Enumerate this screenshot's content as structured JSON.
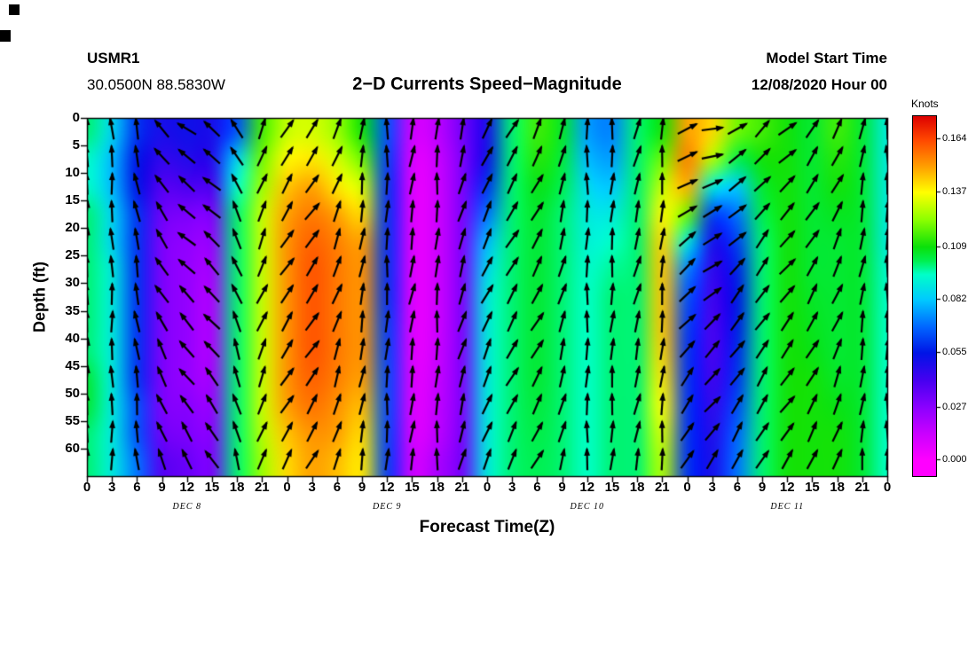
{
  "header": {
    "station_id": "USMR1",
    "coordinates": "30.0500N 88.5830W",
    "title": "2−D Currents Speed−Magnitude",
    "model_start_label": "Model Start Time",
    "model_start_value": "12/08/2020 Hour 00"
  },
  "axes": {
    "y_label": "Depth (ft)",
    "x_label": "Forecast Time(Z)",
    "y_ticks": [
      0,
      5,
      10,
      15,
      20,
      25,
      30,
      35,
      40,
      45,
      50,
      55,
      60
    ],
    "x_tick_labels": [
      "0",
      "3",
      "6",
      "9",
      "12",
      "15",
      "18",
      "21",
      "0",
      "3",
      "6",
      "9",
      "12",
      "15",
      "18",
      "21",
      "0",
      "3",
      "6",
      "9",
      "12",
      "15",
      "18",
      "21",
      "0",
      "3",
      "6",
      "9",
      "12",
      "15",
      "18",
      "21",
      "0"
    ],
    "date_labels": [
      "DEC 8",
      "DEC 9",
      "DEC 10",
      "DEC 11"
    ],
    "date_label_hours": [
      12,
      36,
      60,
      84
    ]
  },
  "colorbar": {
    "title": "Knots",
    "tick_labels": [
      "0.164",
      "0.137",
      "0.109",
      "0.082",
      "0.055",
      "0.027",
      "0.000"
    ],
    "vmin": -0.008,
    "vmax": 0.176
  },
  "chart_data": {
    "type": "heatmap",
    "title": "2−D Currents Speed−Magnitude",
    "xlabel": "Forecast Time(Z)",
    "ylabel": "Depth (ft)",
    "units": "Knots",
    "value_range": [
      0.0,
      0.164
    ],
    "hours": [
      0,
      3,
      6,
      9,
      12,
      15,
      18,
      21,
      24,
      27,
      30,
      33,
      36,
      39,
      42,
      45,
      48,
      51,
      54,
      57,
      60,
      63,
      66,
      69,
      72,
      75,
      78,
      81,
      84,
      87,
      90,
      93,
      96
    ],
    "depths_ft": [
      0,
      5,
      10,
      15,
      20,
      25,
      30,
      35,
      40,
      45,
      50,
      55,
      60
    ],
    "depth_range": [
      0,
      65
    ],
    "values_by_column": [
      [
        0.1,
        0.095,
        0.095,
        0.1,
        0.1,
        0.1,
        0.1,
        0.1,
        0.1,
        0.105,
        0.105,
        0.1,
        0.1
      ],
      [
        0.085,
        0.08,
        0.08,
        0.085,
        0.085,
        0.09,
        0.09,
        0.09,
        0.09,
        0.09,
        0.09,
        0.09,
        0.09
      ],
      [
        0.06,
        0.055,
        0.055,
        0.06,
        0.06,
        0.06,
        0.06,
        0.06,
        0.06,
        0.06,
        0.065,
        0.065,
        0.07
      ],
      [
        0.05,
        0.045,
        0.038,
        0.033,
        0.03,
        0.03,
        0.03,
        0.03,
        0.03,
        0.03,
        0.03,
        0.033,
        0.038
      ],
      [
        0.052,
        0.048,
        0.04,
        0.03,
        0.026,
        0.025,
        0.025,
        0.025,
        0.025,
        0.025,
        0.028,
        0.03,
        0.034
      ],
      [
        0.05,
        0.048,
        0.04,
        0.03,
        0.025,
        0.022,
        0.02,
        0.02,
        0.02,
        0.022,
        0.025,
        0.028,
        0.03
      ],
      [
        0.065,
        0.085,
        0.095,
        0.1,
        0.1,
        0.1,
        0.1,
        0.1,
        0.1,
        0.1,
        0.1,
        0.1,
        0.1
      ],
      [
        0.115,
        0.12,
        0.125,
        0.13,
        0.13,
        0.13,
        0.13,
        0.13,
        0.13,
        0.13,
        0.13,
        0.128,
        0.125
      ],
      [
        0.13,
        0.138,
        0.145,
        0.15,
        0.152,
        0.152,
        0.152,
        0.152,
        0.152,
        0.152,
        0.15,
        0.145,
        0.142
      ],
      [
        0.132,
        0.14,
        0.15,
        0.156,
        0.16,
        0.162,
        0.162,
        0.162,
        0.162,
        0.16,
        0.157,
        0.152,
        0.15
      ],
      [
        0.125,
        0.132,
        0.14,
        0.15,
        0.155,
        0.156,
        0.156,
        0.156,
        0.156,
        0.155,
        0.152,
        0.15,
        0.146
      ],
      [
        0.11,
        0.12,
        0.132,
        0.142,
        0.15,
        0.152,
        0.152,
        0.152,
        0.152,
        0.15,
        0.146,
        0.142,
        0.14
      ],
      [
        0.065,
        0.062,
        0.06,
        0.06,
        0.06,
        0.06,
        0.06,
        0.062,
        0.063,
        0.064,
        0.064,
        0.063,
        0.062
      ],
      [
        0.012,
        0.009,
        0.008,
        0.008,
        0.008,
        0.008,
        0.008,
        0.008,
        0.008,
        0.009,
        0.009,
        0.01,
        0.012
      ],
      [
        0.016,
        0.013,
        0.012,
        0.012,
        0.012,
        0.012,
        0.012,
        0.012,
        0.013,
        0.014,
        0.015,
        0.016,
        0.02
      ],
      [
        0.032,
        0.03,
        0.03,
        0.03,
        0.03,
        0.03,
        0.03,
        0.03,
        0.03,
        0.03,
        0.03,
        0.031,
        0.032
      ],
      [
        0.05,
        0.052,
        0.06,
        0.07,
        0.08,
        0.086,
        0.09,
        0.09,
        0.09,
        0.09,
        0.09,
        0.09,
        0.09
      ],
      [
        0.1,
        0.1,
        0.1,
        0.1,
        0.1,
        0.1,
        0.1,
        0.1,
        0.1,
        0.1,
        0.1,
        0.1,
        0.1
      ],
      [
        0.115,
        0.112,
        0.108,
        0.106,
        0.105,
        0.105,
        0.105,
        0.105,
        0.105,
        0.105,
        0.104,
        0.103,
        0.102
      ],
      [
        0.106,
        0.104,
        0.102,
        0.1,
        0.1,
        0.1,
        0.1,
        0.1,
        0.1,
        0.1,
        0.1,
        0.1,
        0.1
      ],
      [
        0.076,
        0.08,
        0.086,
        0.09,
        0.092,
        0.094,
        0.095,
        0.095,
        0.095,
        0.095,
        0.095,
        0.095,
        0.095
      ],
      [
        0.072,
        0.076,
        0.082,
        0.09,
        0.095,
        0.098,
        0.1,
        0.1,
        0.1,
        0.1,
        0.1,
        0.1,
        0.1
      ],
      [
        0.1,
        0.1,
        0.1,
        0.1,
        0.1,
        0.1,
        0.1,
        0.1,
        0.1,
        0.1,
        0.1,
        0.1,
        0.1
      ],
      [
        0.11,
        0.12,
        0.13,
        0.138,
        0.143,
        0.145,
        0.145,
        0.145,
        0.143,
        0.14,
        0.137,
        0.132,
        0.128
      ],
      [
        0.15,
        0.155,
        0.148,
        0.12,
        0.09,
        0.072,
        0.065,
        0.062,
        0.06,
        0.06,
        0.06,
        0.06,
        0.06
      ],
      [
        0.142,
        0.128,
        0.09,
        0.062,
        0.05,
        0.045,
        0.042,
        0.04,
        0.04,
        0.042,
        0.045,
        0.048,
        0.05
      ],
      [
        0.12,
        0.102,
        0.082,
        0.07,
        0.062,
        0.057,
        0.055,
        0.056,
        0.058,
        0.06,
        0.064,
        0.068,
        0.07
      ],
      [
        0.115,
        0.11,
        0.105,
        0.102,
        0.1,
        0.1,
        0.1,
        0.1,
        0.1,
        0.1,
        0.1,
        0.1,
        0.1
      ],
      [
        0.11,
        0.11,
        0.11,
        0.11,
        0.11,
        0.11,
        0.11,
        0.11,
        0.11,
        0.11,
        0.11,
        0.11,
        0.11
      ],
      [
        0.105,
        0.105,
        0.105,
        0.105,
        0.105,
        0.105,
        0.106,
        0.107,
        0.108,
        0.11,
        0.11,
        0.11,
        0.11
      ],
      [
        0.115,
        0.112,
        0.11,
        0.107,
        0.105,
        0.105,
        0.105,
        0.105,
        0.105,
        0.106,
        0.108,
        0.11,
        0.11
      ],
      [
        0.105,
        0.105,
        0.105,
        0.105,
        0.105,
        0.105,
        0.105,
        0.105,
        0.105,
        0.105,
        0.105,
        0.105,
        0.105
      ],
      [
        0.09,
        0.09,
        0.09,
        0.09,
        0.09,
        0.093,
        0.094,
        0.095,
        0.095,
        0.095,
        0.095,
        0.095,
        0.095
      ]
    ],
    "vector_convention": "degrees, 0=east, 90=north(up); [surface, mid, deep] per time column; arrows show current direction",
    "vectors_deg_by_column": [
      [
        90,
        90,
        88
      ],
      [
        95,
        92,
        90
      ],
      [
        102,
        100,
        95
      ],
      [
        128,
        122,
        110
      ],
      [
        145,
        135,
        120
      ],
      [
        142,
        134,
        122
      ],
      [
        120,
        112,
        104
      ],
      [
        70,
        66,
        70
      ],
      [
        60,
        56,
        60
      ],
      [
        55,
        55,
        60
      ],
      [
        68,
        70,
        74
      ],
      [
        84,
        80,
        80
      ],
      [
        90,
        86,
        86
      ],
      [
        82,
        80,
        84
      ],
      [
        86,
        85,
        88
      ],
      [
        76,
        72,
        76
      ],
      [
        66,
        64,
        70
      ],
      [
        60,
        60,
        64
      ],
      [
        64,
        60,
        62
      ],
      [
        78,
        74,
        76
      ],
      [
        90,
        88,
        88
      ],
      [
        86,
        85,
        86
      ],
      [
        76,
        76,
        80
      ],
      [
        86,
        84,
        85
      ],
      [
        22,
        45,
        60
      ],
      [
        12,
        40,
        55
      ],
      [
        30,
        50,
        60
      ],
      [
        45,
        55,
        60
      ],
      [
        40,
        52,
        56
      ],
      [
        55,
        60,
        62
      ],
      [
        62,
        66,
        70
      ],
      [
        80,
        80,
        84
      ],
      [
        90,
        90,
        90
      ]
    ],
    "colormap_stops": [
      [
        0.0,
        "#ff00ff"
      ],
      [
        0.014,
        "#c800ff"
      ],
      [
        0.027,
        "#8c00ff"
      ],
      [
        0.041,
        "#4600f0"
      ],
      [
        0.055,
        "#0014e6"
      ],
      [
        0.068,
        "#0064ff"
      ],
      [
        0.082,
        "#00c8ff"
      ],
      [
        0.095,
        "#00ffc8"
      ],
      [
        0.102,
        "#00f050"
      ],
      [
        0.109,
        "#0ae00a"
      ],
      [
        0.123,
        "#8cff00"
      ],
      [
        0.137,
        "#ffff00"
      ],
      [
        0.15,
        "#ffa000"
      ],
      [
        0.164,
        "#ff4600"
      ],
      [
        0.18,
        "#dc0000"
      ]
    ],
    "legend_position": "right",
    "grid": false
  }
}
